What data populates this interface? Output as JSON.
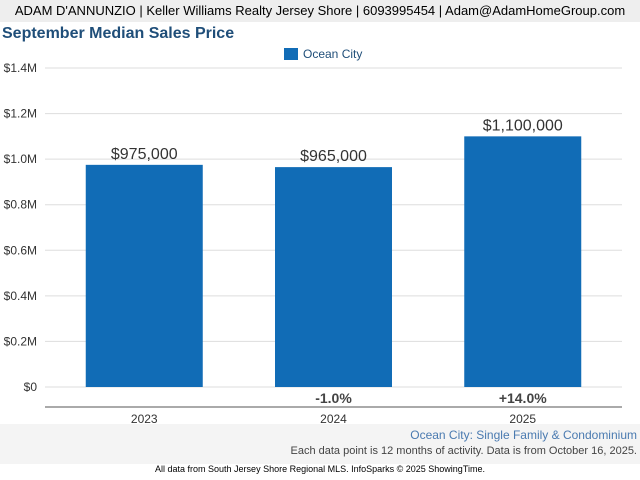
{
  "header": {
    "agent_line": "ADAM D'ANNUNZIO | Keller Williams Realty Jersey Shore | 6093995454 | Adam@AdamHomeGroup.com"
  },
  "footer": {
    "location": "Ocean City: Single Family & Condominium",
    "note": "Each data point is 12 months of activity. Data is from October 16, 2025.",
    "credit": "All data from South Jersey Shore Regional MLS. InfoSparks © 2025 ShowingTime."
  },
  "colors": {
    "bar": "#116cb6",
    "title": "#1f4e79",
    "grid": "#dddddd",
    "axis_text": "#333333"
  },
  "chart_data": {
    "type": "bar",
    "title": "September Median Sales Price",
    "xlabel": "",
    "ylabel": "",
    "categories": [
      "2023",
      "2024",
      "2025"
    ],
    "series": [
      {
        "name": "Ocean City",
        "values": [
          975000,
          965000,
          1100000
        ]
      }
    ],
    "value_labels": [
      "$975,000",
      "$965,000",
      "$1,100,000"
    ],
    "change_labels": [
      "",
      "-1.0%",
      "+14.0%"
    ],
    "ylim": [
      0,
      1400000
    ],
    "yticks": [
      0,
      200000,
      400000,
      600000,
      800000,
      1000000,
      1200000,
      1400000
    ],
    "ytick_labels": [
      "$0",
      "$0.2M",
      "$0.4M",
      "$0.6M",
      "$0.8M",
      "$1.0M",
      "$1.2M",
      "$1.4M"
    ],
    "grid": true,
    "legend": "top-center"
  }
}
